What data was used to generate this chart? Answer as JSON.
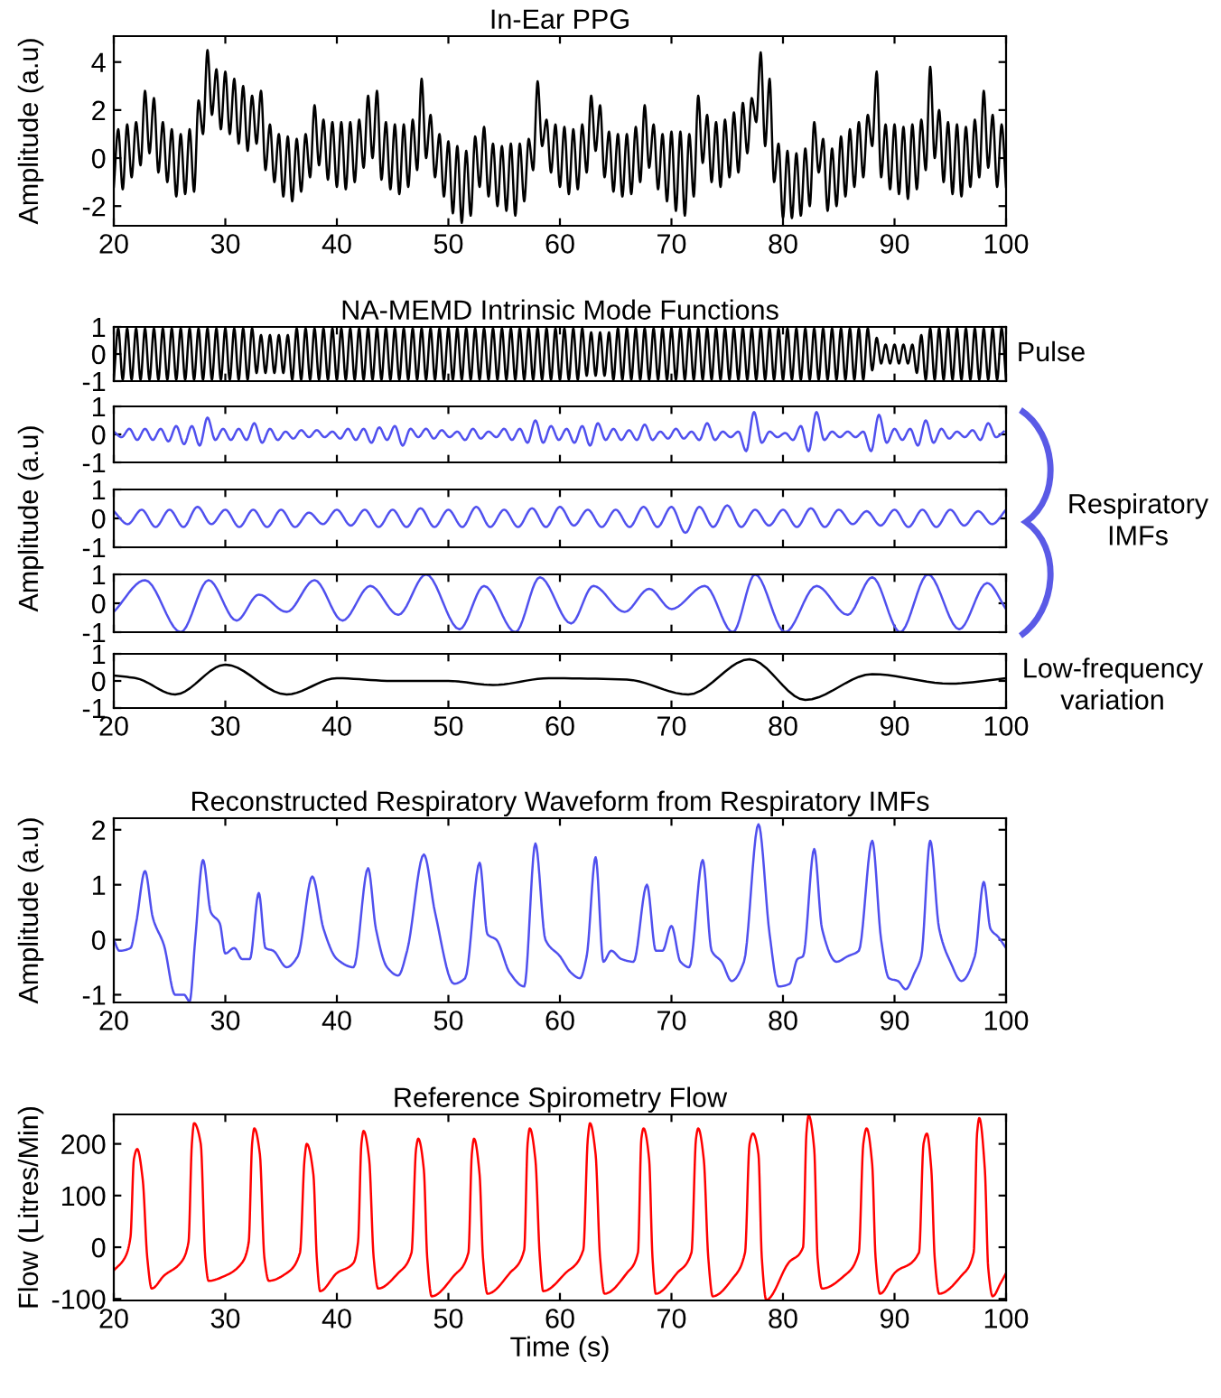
{
  "chart_data": [
    {
      "type": "line",
      "title": "In-Ear PPG",
      "ylabel": "Amplitude (a.u)",
      "xlim": [
        20,
        100
      ],
      "ylim": [
        -2.82,
        5.08
      ],
      "xticks": [
        20,
        30,
        40,
        50,
        60,
        70,
        80,
        90,
        100
      ],
      "yticks": [
        -2,
        0,
        2,
        4
      ],
      "x": [
        20,
        20.4,
        20.8,
        21.2,
        21.6,
        22,
        22.4,
        22.8,
        23.2,
        23.6,
        24,
        24.4,
        24.8,
        25.2,
        25.6,
        26,
        26.4,
        26.8,
        27.2,
        27.6,
        28,
        28.4,
        28.8,
        29.2,
        29.6,
        30,
        30.4,
        30.8,
        31.2,
        31.6,
        32,
        32.4,
        32.8,
        33.2,
        33.6,
        34,
        34.4,
        34.8,
        35.2,
        35.6,
        36,
        36.4,
        36.8,
        37.2,
        37.6,
        38,
        38.4,
        38.8,
        39.2,
        39.6,
        40,
        40.4,
        40.8,
        41.2,
        41.6,
        42,
        42.4,
        42.8,
        43.2,
        43.6,
        44,
        44.4,
        44.8,
        45.2,
        45.6,
        46,
        46.4,
        46.8,
        47.2,
        47.6,
        48,
        48.4,
        48.8,
        49.2,
        49.6,
        50,
        50.4,
        50.8,
        51.2,
        51.6,
        52,
        52.4,
        52.8,
        53.2,
        53.6,
        54,
        54.4,
        54.8,
        55.2,
        55.6,
        56,
        56.4,
        56.8,
        57.2,
        57.6,
        58,
        58.4,
        58.8,
        59.2,
        59.6,
        60,
        60.4,
        60.8,
        61.2,
        61.6,
        62,
        62.4,
        62.8,
        63.2,
        63.6,
        64,
        64.4,
        64.8,
        65.2,
        65.6,
        66,
        66.4,
        66.8,
        67.2,
        67.6,
        68,
        68.4,
        68.8,
        69.2,
        69.6,
        70,
        70.4,
        70.8,
        71.2,
        71.6,
        72,
        72.4,
        72.8,
        73.2,
        73.6,
        74,
        74.4,
        74.8,
        75.2,
        75.6,
        76,
        76.4,
        76.8,
        77.2,
        77.6,
        78,
        78.4,
        78.8,
        79.2,
        79.6,
        80,
        80.4,
        80.8,
        81.2,
        81.6,
        82,
        82.4,
        82.8,
        83.2,
        83.6,
        84,
        84.4,
        84.8,
        85.2,
        85.6,
        86,
        86.4,
        86.8,
        87.2,
        87.6,
        88,
        88.4,
        88.8,
        89.2,
        89.6,
        90,
        90.4,
        90.8,
        91.2,
        91.6,
        92,
        92.4,
        92.8,
        93.2,
        93.6,
        94,
        94.4,
        94.8,
        95.2,
        95.6,
        96,
        96.4,
        96.8,
        97.2,
        97.6,
        98,
        98.4,
        98.8,
        99.2,
        99.6,
        100
      ],
      "series": [
        {
          "color": "#000000",
          "values": [
            -1.2,
            1.2,
            -1.3,
            1.4,
            -0.8,
            1.5,
            -0.3,
            2.8,
            0.2,
            2.5,
            -0.6,
            1.5,
            -1.0,
            1.2,
            -1.6,
            1.0,
            -1.5,
            1.2,
            -1.4,
            2.4,
            1.0,
            4.5,
            1.8,
            3.7,
            1.2,
            3.6,
            1.0,
            3.3,
            0.6,
            3.0,
            0.3,
            2.6,
            0.6,
            2.8,
            -0.5,
            1.4,
            -1.0,
            1.0,
            -1.6,
            0.9,
            -1.8,
            0.8,
            -1.4,
            1.0,
            -0.8,
            2.2,
            -0.3,
            1.6,
            -0.9,
            1.5,
            -1.2,
            1.5,
            -1.3,
            1.5,
            -1.0,
            1.6,
            -0.4,
            2.6,
            0.0,
            2.8,
            -0.9,
            1.5,
            -1.3,
            1.4,
            -1.5,
            1.4,
            -1.2,
            1.6,
            -0.5,
            3.3,
            0.0,
            1.8,
            -0.8,
            1.0,
            -1.6,
            0.7,
            -2.3,
            0.5,
            -2.7,
            0.3,
            -2.4,
            0.9,
            -1.2,
            1.3,
            -1.6,
            0.6,
            -2.0,
            0.5,
            -2.2,
            0.6,
            -2.4,
            0.6,
            -1.8,
            0.8,
            -0.5,
            3.2,
            0.5,
            1.6,
            -0.6,
            1.4,
            -1.2,
            1.3,
            -1.5,
            1.2,
            -1.3,
            1.4,
            -0.6,
            2.6,
            0.3,
            2.2,
            -0.8,
            1.1,
            -1.4,
            1.0,
            -1.6,
            1.0,
            -1.5,
            1.3,
            -1.0,
            2.2,
            -0.4,
            1.4,
            -1.3,
            1.0,
            -1.8,
            1.1,
            -2.2,
            1.1,
            -2.4,
            1.0,
            -1.6,
            2.6,
            -0.2,
            1.8,
            -1.0,
            1.5,
            -1.2,
            1.6,
            -0.8,
            1.9,
            -0.6,
            2.3,
            0.2,
            2.5,
            1.5,
            4.4,
            0.5,
            3.3,
            -1.0,
            0.6,
            -2.5,
            0.3,
            -2.5,
            0.2,
            -2.4,
            0.4,
            -2.0,
            1.5,
            -0.6,
            0.8,
            -2.2,
            0.4,
            -2.0,
            0.9,
            -1.6,
            1.2,
            -1.2,
            1.5,
            -0.8,
            1.8,
            0.5,
            3.6,
            -0.8,
            1.4,
            -1.3,
            1.4,
            -1.5,
            1.3,
            -1.7,
            1.4,
            -1.3,
            1.6,
            -0.5,
            3.8,
            0.0,
            2.0,
            -1.0,
            1.5,
            -1.5,
            1.4,
            -1.6,
            1.3,
            -1.2,
            1.6,
            -0.8,
            2.8,
            -0.4,
            1.8,
            -1.2,
            1.4,
            -1.2
          ]
        }
      ]
    },
    {
      "type": "line",
      "title": "NA-MEMD Intrinsic Mode Functions",
      "xlim": [
        20,
        100
      ],
      "ylim": [
        -1,
        1
      ],
      "xticks": [
        20,
        30,
        40,
        50,
        60,
        70,
        80,
        90,
        100
      ],
      "yticks": [
        -1,
        0,
        1
      ],
      "tick_labels": "y",
      "annotations": [
        "Pulse"
      ],
      "x": [
        20,
        20.4,
        20.8,
        21.2,
        21.6,
        22,
        22.4,
        22.8,
        23.2,
        23.6,
        24,
        24.4,
        24.8,
        25.2,
        25.6,
        26,
        26.4,
        26.8,
        27.2,
        27.6,
        28,
        28.4,
        28.8,
        29.2,
        29.6,
        30,
        30.4,
        30.8,
        31.2,
        31.6,
        32,
        32.4,
        32.8,
        33.2,
        33.6,
        34,
        34.4,
        34.8,
        35.2,
        35.6,
        36,
        36.4,
        36.8,
        37.2,
        37.6,
        38,
        38.4,
        38.8,
        39.2,
        39.6,
        40,
        40.4,
        40.8,
        41.2,
        41.6,
        42,
        42.4,
        42.8,
        43.2,
        43.6,
        44,
        44.4,
        44.8,
        45.2,
        45.6,
        46,
        46.4,
        46.8,
        47.2,
        47.6,
        48,
        48.4,
        48.8,
        49.2,
        49.6,
        50,
        50.4,
        50.8,
        51.2,
        51.6,
        52,
        52.4,
        52.8,
        53.2,
        53.6,
        54,
        54.4,
        54.8,
        55.2,
        55.6,
        56,
        56.4,
        56.8,
        57.2,
        57.6,
        58,
        58.4,
        58.8,
        59.2,
        59.6,
        60,
        60.4,
        60.8,
        61.2,
        61.6,
        62,
        62.4,
        62.8,
        63.2,
        63.6,
        64,
        64.4,
        64.8,
        65.2,
        65.6,
        66,
        66.4,
        66.8,
        67.2,
        67.6,
        68,
        68.4,
        68.8,
        69.2,
        69.6,
        70,
        70.4,
        70.8,
        71.2,
        71.6,
        72,
        72.4,
        72.8,
        73.2,
        73.6,
        74,
        74.4,
        74.8,
        75.2,
        75.6,
        76,
        76.4,
        76.8,
        77.2,
        77.6,
        78,
        78.4,
        78.8,
        79.2,
        79.6,
        80,
        80.4,
        80.8,
        81.2,
        81.6,
        82,
        82.4,
        82.8,
        83.2,
        83.6,
        84,
        84.4,
        84.8,
        85.2,
        85.6,
        86,
        86.4,
        86.8,
        87.2,
        87.6,
        88,
        88.4,
        88.8,
        89.2,
        89.6,
        90,
        90.4,
        90.8,
        91.2,
        91.6,
        92,
        92.4,
        92.8,
        93.2,
        93.6,
        94,
        94.4,
        94.8,
        95.2,
        95.6,
        96,
        96.4,
        96.8,
        97.2,
        97.6,
        98,
        98.4,
        98.8,
        99.2,
        99.6,
        100
      ],
      "series": [
        {
          "color": "#000000",
          "values": [
            -0.95,
            0.95,
            -0.95,
            0.95,
            -0.95,
            0.95,
            -0.95,
            0.95,
            -0.95,
            0.95,
            -0.95,
            0.95,
            -0.95,
            0.95,
            -0.95,
            0.95,
            -0.95,
            0.95,
            -0.95,
            0.95,
            -0.95,
            0.95,
            -0.95,
            0.95,
            -0.95,
            0.95,
            -0.95,
            0.95,
            -0.95,
            0.95,
            -0.95,
            0.95,
            -0.7,
            0.7,
            -0.7,
            0.7,
            -0.7,
            0.7,
            -0.7,
            0.7,
            -0.95,
            0.95,
            -0.95,
            0.95,
            -0.95,
            0.95,
            -0.95,
            0.95,
            -0.95,
            0.95,
            -0.95,
            0.95,
            -0.95,
            0.95,
            -0.95,
            0.95,
            -0.95,
            0.95,
            -0.95,
            0.95,
            -0.95,
            0.95,
            -0.95,
            0.95,
            -0.95,
            0.95,
            -0.95,
            0.95,
            -0.95,
            0.95,
            -0.95,
            0.95,
            -0.95,
            0.95,
            -0.95,
            0.95,
            -0.95,
            0.95,
            -0.95,
            0.95,
            -0.95,
            0.95,
            -0.95,
            0.95,
            -0.95,
            0.95,
            -0.95,
            0.95,
            -0.95,
            0.95,
            -0.95,
            0.95,
            -0.95,
            0.95,
            -0.95,
            0.95,
            -0.95,
            0.95,
            -0.95,
            0.95,
            -0.95,
            0.95,
            -0.95,
            0.95,
            -0.95,
            0.95,
            -0.8,
            0.8,
            -0.8,
            0.8,
            -0.8,
            0.8,
            -0.95,
            0.95,
            -0.95,
            0.95,
            -0.95,
            0.95,
            -0.95,
            0.95,
            -0.95,
            0.95,
            -0.95,
            0.95,
            -0.95,
            0.95,
            -0.95,
            0.95,
            -0.95,
            0.95,
            -0.95,
            0.95,
            -0.95,
            0.95,
            -0.95,
            0.95,
            -0.95,
            0.95,
            -0.95,
            0.95,
            -0.95,
            0.95,
            -0.95,
            0.95,
            -0.95,
            0.95,
            -0.95,
            0.95,
            -0.95,
            0.95,
            -0.95,
            0.95,
            -0.95,
            0.95,
            -0.95,
            0.95,
            -0.95,
            0.95,
            -0.95,
            0.95,
            -0.95,
            0.95,
            -0.95,
            0.95,
            -0.95,
            0.95,
            -0.95,
            0.95,
            -0.95,
            0.95,
            -0.6,
            0.6,
            -0.35,
            0.35,
            -0.35,
            0.35,
            -0.35,
            0.35,
            -0.35,
            0.35,
            -0.7,
            0.7,
            -0.95,
            0.95,
            -0.95,
            0.95,
            -0.95,
            0.95,
            -0.95,
            0.95,
            -0.95,
            0.95,
            -0.95,
            0.95,
            -0.95,
            0.95,
            -0.95,
            0.95,
            -0.95,
            0.95,
            -0.95
          ]
        }
      ]
    },
    {
      "type": "line",
      "xlim": [
        20,
        100
      ],
      "ylim": [
        -1,
        1
      ],
      "xticks": [
        20,
        30,
        40,
        50,
        60,
        70,
        80,
        90,
        100
      ],
      "yticks": [
        -1,
        0,
        1
      ],
      "tick_labels": "y",
      "x": [
        20.0,
        20.7,
        21.4,
        22.1,
        22.8,
        23.5,
        24.2,
        24.9,
        25.6,
        26.3,
        27.0,
        27.7,
        28.4,
        29.1,
        29.8,
        30.5,
        31.2,
        31.9,
        32.6,
        33.3,
        34.0,
        34.7,
        35.4,
        36.1,
        36.8,
        37.5,
        38.2,
        38.9,
        39.6,
        40.3,
        41.0,
        41.7,
        42.4,
        43.1,
        43.8,
        44.5,
        45.2,
        45.9,
        46.6,
        47.3,
        48.0,
        48.7,
        49.4,
        50.1,
        50.8,
        51.5,
        52.2,
        52.9,
        53.6,
        54.3,
        55.0,
        55.7,
        56.4,
        57.1,
        57.8,
        58.5,
        59.2,
        59.9,
        60.6,
        61.3,
        62.0,
        62.7,
        63.4,
        64.1,
        64.8,
        65.5,
        66.2,
        66.9,
        67.6,
        68.3,
        69.0,
        69.7,
        70.4,
        71.1,
        71.8,
        72.5,
        73.2,
        73.9,
        74.6,
        75.3,
        76.0,
        76.7,
        77.4,
        78.1,
        78.8,
        79.5,
        80.2,
        80.9,
        81.6,
        82.3,
        83.0,
        83.7,
        84.4,
        85.1,
        85.8,
        86.5,
        87.2,
        87.9,
        88.6,
        89.3,
        90.0,
        90.7,
        91.4,
        92.1,
        92.8,
        93.5,
        94.2,
        94.9,
        95.6,
        96.3,
        97.0,
        97.7,
        98.4,
        99.1,
        99.8
      ],
      "series": [
        {
          "color": "#5050ee",
          "values": [
            0.1,
            -0.1,
            0.2,
            -0.2,
            0.2,
            -0.2,
            0.2,
            -0.25,
            0.3,
            -0.35,
            0.3,
            -0.4,
            0.6,
            -0.2,
            0.2,
            -0.2,
            0.2,
            -0.2,
            0.4,
            -0.3,
            0.2,
            -0.2,
            0.1,
            -0.15,
            0.15,
            -0.1,
            0.15,
            -0.1,
            0.1,
            -0.15,
            0.2,
            -0.2,
            0.2,
            -0.3,
            0.25,
            -0.2,
            0.3,
            -0.4,
            0.2,
            -0.1,
            0.2,
            -0.15,
            0.15,
            -0.1,
            0.1,
            -0.2,
            0.2,
            -0.15,
            0.1,
            -0.1,
            0.2,
            -0.2,
            0.2,
            -0.3,
            0.5,
            -0.3,
            0.3,
            -0.2,
            0.2,
            -0.3,
            0.3,
            -0.4,
            0.4,
            -0.2,
            0.2,
            -0.2,
            0.15,
            -0.2,
            0.35,
            -0.2,
            0.1,
            -0.15,
            0.2,
            -0.15,
            0.1,
            -0.2,
            0.4,
            -0.2,
            0.1,
            -0.1,
            0.1,
            -0.6,
            0.8,
            -0.3,
            0.1,
            -0.1,
            0.05,
            -0.2,
            0.3,
            -0.6,
            0.8,
            -0.2,
            0.1,
            -0.1,
            0.1,
            -0.1,
            0.1,
            -0.6,
            0.7,
            -0.3,
            0.2,
            -0.2,
            0.2,
            -0.4,
            0.5,
            -0.3,
            0.2,
            -0.15,
            0.1,
            -0.1,
            0.15,
            -0.2,
            0.4,
            -0.1,
            0.1
          ]
        }
      ]
    },
    {
      "type": "line",
      "ylabel": "Amplitude (a.u)",
      "xlim": [
        20,
        100
      ],
      "ylim": [
        -1,
        1
      ],
      "xticks": [
        20,
        30,
        40,
        50,
        60,
        70,
        80,
        90,
        100
      ],
      "yticks": [
        -1,
        0,
        1
      ],
      "tick_labels": "y",
      "annotations": [
        "Respiratory\nIMFs"
      ],
      "x": [
        20,
        21.25,
        22.5,
        23.75,
        25,
        26.25,
        27.5,
        28.75,
        30,
        31.25,
        32.5,
        33.75,
        35,
        36.25,
        37.5,
        38.75,
        40,
        41.25,
        42.5,
        43.75,
        45,
        46.25,
        47.5,
        48.75,
        50,
        51.25,
        52.5,
        53.75,
        55,
        56.25,
        57.5,
        58.75,
        60,
        61.25,
        62.5,
        63.75,
        65,
        66.25,
        67.5,
        68.75,
        70,
        71.25,
        72.5,
        73.75,
        75,
        76.25,
        77.5,
        78.75,
        80,
        81.25,
        82.5,
        83.75,
        85,
        86.25,
        87.5,
        88.75,
        90,
        91.25,
        92.5,
        93.75,
        95,
        96.25,
        97.5,
        98.75,
        100
      ],
      "series": [
        {
          "color": "#5050ee",
          "values": [
            0.25,
            -0.2,
            0.3,
            -0.3,
            0.3,
            -0.3,
            0.4,
            -0.2,
            0.3,
            -0.3,
            0.3,
            -0.3,
            0.3,
            -0.3,
            0.2,
            -0.2,
            0.3,
            -0.25,
            0.3,
            -0.3,
            0.3,
            -0.3,
            0.35,
            -0.3,
            0.3,
            -0.3,
            0.4,
            -0.3,
            0.3,
            -0.3,
            0.35,
            -0.3,
            0.4,
            -0.25,
            0.3,
            -0.3,
            0.3,
            -0.3,
            0.4,
            -0.3,
            0.4,
            -0.5,
            0.4,
            -0.3,
            0.45,
            -0.3,
            0.3,
            -0.25,
            0.3,
            -0.3,
            0.35,
            -0.3,
            0.3,
            -0.2,
            0.25,
            -0.25,
            0.3,
            -0.3,
            0.3,
            -0.3,
            0.3,
            -0.25,
            0.25,
            -0.2,
            0.3
          ]
        }
      ]
    },
    {
      "type": "line",
      "xlim": [
        20,
        100
      ],
      "ylim": [
        -1,
        1
      ],
      "xticks": [
        20,
        30,
        40,
        50,
        60,
        70,
        80,
        90,
        100
      ],
      "yticks": [
        -1,
        0,
        1
      ],
      "tick_labels": "y",
      "x": [
        20,
        22.8,
        26,
        28.5,
        31,
        33,
        35.5,
        38,
        40.5,
        43,
        45.5,
        48,
        51,
        53.2,
        56,
        58.2,
        61,
        63,
        65.8,
        68,
        70,
        73,
        75.5,
        77.5,
        80.2,
        83,
        85.8,
        88,
        90.5,
        93,
        95.8,
        98.3,
        100
      ],
      "series": [
        {
          "color": "#5050ee",
          "values": [
            -0.3,
            0.8,
            -1,
            0.8,
            -0.6,
            0.3,
            -0.3,
            0.8,
            -0.6,
            0.6,
            -0.4,
            1,
            -0.9,
            0.6,
            -1,
            0.9,
            -0.7,
            0.6,
            -0.3,
            0.5,
            -0.2,
            0.6,
            -1,
            1,
            -1,
            0.6,
            -0.4,
            0.9,
            -1,
            1,
            -0.9,
            0.7,
            -0.2
          ]
        }
      ]
    },
    {
      "type": "line",
      "xlim": [
        20,
        100
      ],
      "ylim": [
        -1,
        1
      ],
      "xticks": [
        20,
        30,
        40,
        50,
        60,
        70,
        80,
        90,
        100
      ],
      "yticks": [
        -1,
        0,
        1
      ],
      "annotations": [
        "Low-frequency\nvariation"
      ],
      "x": [
        20,
        22,
        25.5,
        30,
        35.5,
        40,
        45,
        50,
        54,
        59,
        66,
        71.5,
        77,
        82,
        88,
        95,
        100
      ],
      "series": [
        {
          "color": "#000000",
          "values": [
            0.2,
            0.1,
            -0.5,
            0.6,
            -0.5,
            0.1,
            0.0,
            0.0,
            -0.15,
            0.1,
            0.05,
            -0.5,
            0.8,
            -0.7,
            0.25,
            -0.1,
            0.1
          ]
        }
      ]
    },
    {
      "type": "line",
      "title": "Reconstructed Respiratory Waveform from Respiratory IMFs",
      "ylabel": "Amplitude (a.u)",
      "xlim": [
        20,
        100
      ],
      "ylim": [
        -1.14,
        2.21
      ],
      "xticks": [
        20,
        30,
        40,
        50,
        60,
        70,
        80,
        90,
        100
      ],
      "yticks": [
        -1,
        0,
        1,
        2
      ],
      "x": [
        20,
        20.5,
        21.5,
        22,
        22.8,
        23.5,
        24.5,
        25.5,
        26.3,
        26.8,
        27.3,
        28,
        28.7,
        29.5,
        30,
        30.8,
        31.5,
        32.2,
        33,
        33.6,
        34.3,
        35.5,
        36.5,
        37.8,
        38.8,
        40,
        41.5,
        42.8,
        43.5,
        44.5,
        45.5,
        46.3,
        47.8,
        48.8,
        50.5,
        51.5,
        52.8,
        53.5,
        54.3,
        55.5,
        56.8,
        57.8,
        58.7,
        60,
        61,
        61.8,
        62.4,
        63.2,
        63.9,
        64.6,
        65.5,
        66.6,
        67.8,
        68.6,
        69.2,
        70,
        70.8,
        71.6,
        72.8,
        73.6,
        74.5,
        75.4,
        76.5,
        77.8,
        78.8,
        79.6,
        80.6,
        81.3,
        81.8,
        82.8,
        83.5,
        84.8,
        85.8,
        86.8,
        88,
        88.8,
        89.5,
        90.3,
        91,
        91.8,
        92.4,
        93.2,
        94,
        95,
        96,
        97.2,
        98,
        98.6,
        99.3,
        100
      ],
      "series": [
        {
          "color": "#5050ee",
          "values": [
            0,
            -0.2,
            -0.15,
            0.3,
            1.25,
            0.4,
            -0.1,
            -1.0,
            -1.0,
            -1.12,
            0.0,
            1.45,
            0.5,
            0.3,
            -0.25,
            -0.15,
            -0.35,
            -0.35,
            0.85,
            -0.15,
            -0.2,
            -0.5,
            -0.3,
            1.15,
            0.2,
            -0.35,
            -0.5,
            1.3,
            0.2,
            -0.5,
            -0.65,
            -0.2,
            1.55,
            0.5,
            -0.8,
            -0.7,
            1.4,
            0.1,
            0.0,
            -0.6,
            -0.85,
            1.75,
            0.0,
            -0.3,
            -0.6,
            -0.7,
            -0.3,
            1.5,
            -0.4,
            -0.2,
            -0.35,
            -0.4,
            1.0,
            -0.2,
            -0.2,
            0.25,
            -0.4,
            -0.5,
            1.45,
            -0.2,
            -0.4,
            -0.75,
            -0.4,
            2.1,
            0.1,
            -0.85,
            -0.8,
            -0.35,
            -0.3,
            1.65,
            0.2,
            -0.4,
            -0.3,
            -0.2,
            1.8,
            0.0,
            -0.7,
            -0.75,
            -0.9,
            -0.6,
            -0.3,
            1.8,
            0.2,
            -0.4,
            -0.75,
            -0.3,
            1.05,
            0.2,
            0.05,
            -0.15
          ]
        }
      ]
    },
    {
      "type": "line",
      "title": "Reference Spirometry Flow",
      "xlabel": "Time (s)",
      "ylabel": "Flow (Litres/Min)",
      "xlim": [
        20,
        100
      ],
      "ylim": [
        -103,
        257
      ],
      "xticks": [
        20,
        30,
        40,
        50,
        60,
        70,
        80,
        90,
        100
      ],
      "yticks": [
        -100,
        0,
        100,
        200
      ],
      "x": [
        20,
        21,
        21.5,
        21.8,
        22.1,
        22.6,
        23,
        23.4,
        24.5,
        26,
        26.7,
        27,
        27.2,
        27.8,
        28.2,
        28.5,
        30,
        31.5,
        32.1,
        32.4,
        32.6,
        33.1,
        33.5,
        33.9,
        35.5,
        36.7,
        37.1,
        37.3,
        37.9,
        38.2,
        38.5,
        40,
        41.5,
        41.9,
        42.2,
        42.4,
        42.9,
        43.3,
        43.7,
        45.5,
        46.7,
        47.1,
        47.3,
        47.8,
        48.1,
        48.5,
        50.5,
        51.8,
        52.1,
        52.3,
        52.8,
        53.1,
        53.5,
        55.5,
        56.8,
        57.1,
        57.3,
        57.8,
        58.2,
        58.5,
        60.5,
        62.1,
        62.5,
        62.7,
        63.2,
        63.6,
        64,
        66,
        67,
        67.3,
        67.5,
        68,
        68.3,
        68.6,
        70.5,
        71.8,
        72.2,
        72.4,
        72.9,
        73.3,
        73.7,
        75.5,
        76.6,
        77,
        77.3,
        77.8,
        78.1,
        78.5,
        80.5,
        81.8,
        82.1,
        82.3,
        82.8,
        83.1,
        83.5,
        85.5,
        86.8,
        87.2,
        87.5,
        88,
        88.3,
        88.7,
        90,
        92.2,
        92.6,
        92.9,
        93.3,
        93.6,
        94,
        96,
        97.1,
        97.4,
        97.6,
        98.1,
        98.4,
        98.8,
        99.5,
        100
      ],
      "series": [
        {
          "color": "#ff0000",
          "values": [
            -45,
            -20,
            20,
            170,
            190,
            130,
            -20,
            -80,
            -55,
            -30,
            10,
            200,
            240,
            200,
            -20,
            -65,
            -55,
            -30,
            10,
            200,
            230,
            180,
            -20,
            -65,
            -50,
            -10,
            170,
            200,
            140,
            -20,
            -85,
            -50,
            -30,
            10,
            200,
            225,
            170,
            -20,
            -80,
            -50,
            -10,
            190,
            210,
            150,
            -20,
            -95,
            -55,
            -10,
            180,
            210,
            140,
            -20,
            -90,
            -50,
            -5,
            200,
            230,
            170,
            -20,
            -85,
            -50,
            -5,
            210,
            240,
            180,
            -20,
            -90,
            -50,
            -10,
            210,
            230,
            170,
            -20,
            -90,
            -50,
            -10,
            210,
            230,
            170,
            -20,
            -95,
            -60,
            -10,
            200,
            220,
            180,
            -20,
            -102,
            -30,
            0,
            220,
            255,
            190,
            -20,
            -80,
            -55,
            -10,
            200,
            230,
            160,
            -20,
            -90,
            -50,
            -10,
            200,
            220,
            150,
            -20,
            -90,
            -55,
            -10,
            220,
            250,
            150,
            -40,
            -95,
            -70,
            -50
          ]
        }
      ]
    }
  ]
}
